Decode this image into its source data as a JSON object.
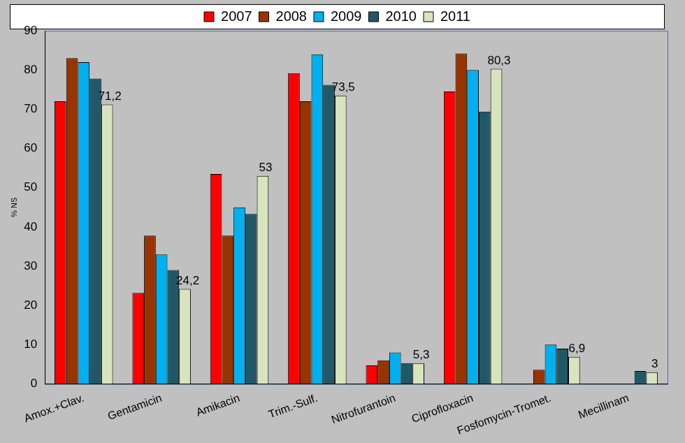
{
  "chart_data": {
    "type": "bar",
    "y_label": "% NS",
    "categories": [
      "Amox.+Clav.",
      "Gentamicin",
      "Amikacin",
      "Trim.-Sulf.",
      "Nitrofurantoin",
      "Ciprofloxacin",
      "Fosfomycin-Tromet.",
      "Mecillinam"
    ],
    "series": [
      {
        "name": "2007",
        "color": "#ff0000",
        "values": [
          72,
          23.2,
          53.5,
          79.2,
          4.7,
          74.5,
          null,
          null
        ]
      },
      {
        "name": "2008",
        "color": "#993300",
        "values": [
          83,
          37.8,
          37.8,
          72,
          6,
          84.2,
          3.6,
          null
        ]
      },
      {
        "name": "2009",
        "color": "#00b0f0",
        "values": [
          82,
          33,
          45,
          84,
          8,
          80,
          10,
          null
        ]
      },
      {
        "name": "2010",
        "color": "#215868",
        "values": [
          77.8,
          29,
          43.3,
          76.2,
          5.3,
          69.4,
          9,
          3.3
        ]
      },
      {
        "name": "2011",
        "color": "#d7e4bd",
        "values": [
          71.2,
          24.2,
          53,
          73.5,
          5.3,
          80.3,
          6.9,
          3
        ],
        "value_labels": [
          "71,2",
          "24,2",
          "53",
          "73,5",
          "5,3",
          "80,3",
          "6,9",
          "3"
        ]
      }
    ],
    "ylim": [
      0,
      90
    ],
    "yticks": [
      0,
      10,
      20,
      30,
      40,
      50,
      60,
      70,
      80,
      90
    ],
    "grid": false,
    "legend": "top",
    "data_labels": true
  }
}
